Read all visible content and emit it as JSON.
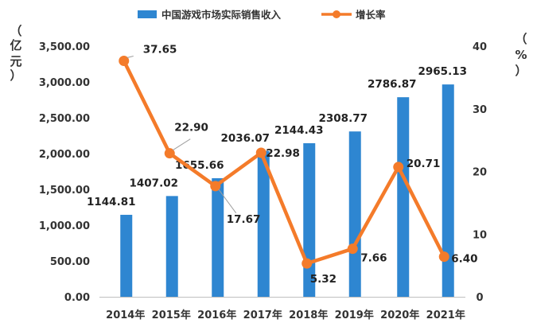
{
  "chart_data": {
    "type": "bar+line",
    "categories": [
      "2014年",
      "2015年",
      "2016年",
      "2017年",
      "2018年",
      "2019年",
      "2020年",
      "2021年"
    ],
    "series": [
      {
        "name": "中国游戏市场实际销售收入",
        "type": "bar",
        "axis": "left",
        "values": [
          1144.81,
          1407.02,
          1655.66,
          2036.07,
          2144.43,
          2308.77,
          2786.87,
          2965.13
        ],
        "labels": [
          "1144.81",
          "1407.02",
          "1655.66",
          "2036.07",
          "2144.43",
          "2308.77",
          "2786.87",
          "2965.13"
        ]
      },
      {
        "name": "增长率",
        "type": "line",
        "axis": "right",
        "values": [
          37.65,
          22.9,
          17.67,
          22.98,
          5.32,
          7.66,
          20.71,
          6.4
        ],
        "labels": [
          "37.65",
          "22.90",
          "17.67",
          "22.98",
          "5.32",
          "7.66",
          "20.71",
          "6.40"
        ]
      }
    ],
    "y_left": {
      "unit_label": [
        "（",
        "亿",
        "元",
        "）"
      ],
      "ticks": [
        "0.00",
        "500.00",
        "1,000.00",
        "1,500.00",
        "2,000.00",
        "2,500.00",
        "3,000.00",
        "3,500.00"
      ],
      "tick_values": [
        0,
        500,
        1000,
        1500,
        2000,
        2500,
        3000,
        3500
      ],
      "range": [
        0,
        3500
      ]
    },
    "y_right": {
      "unit_label": [
        "（",
        "%",
        "）"
      ],
      "ticks": [
        "0",
        "10",
        "20",
        "30",
        "40"
      ],
      "tick_values": [
        0,
        10,
        20,
        30,
        40
      ],
      "range": [
        0,
        40
      ]
    },
    "legend_position": "top",
    "grid": false,
    "colors": {
      "bar": "#2e86d1",
      "line": "#f47b2a",
      "axis": "#bfbfbf",
      "text": "#333333"
    }
  }
}
